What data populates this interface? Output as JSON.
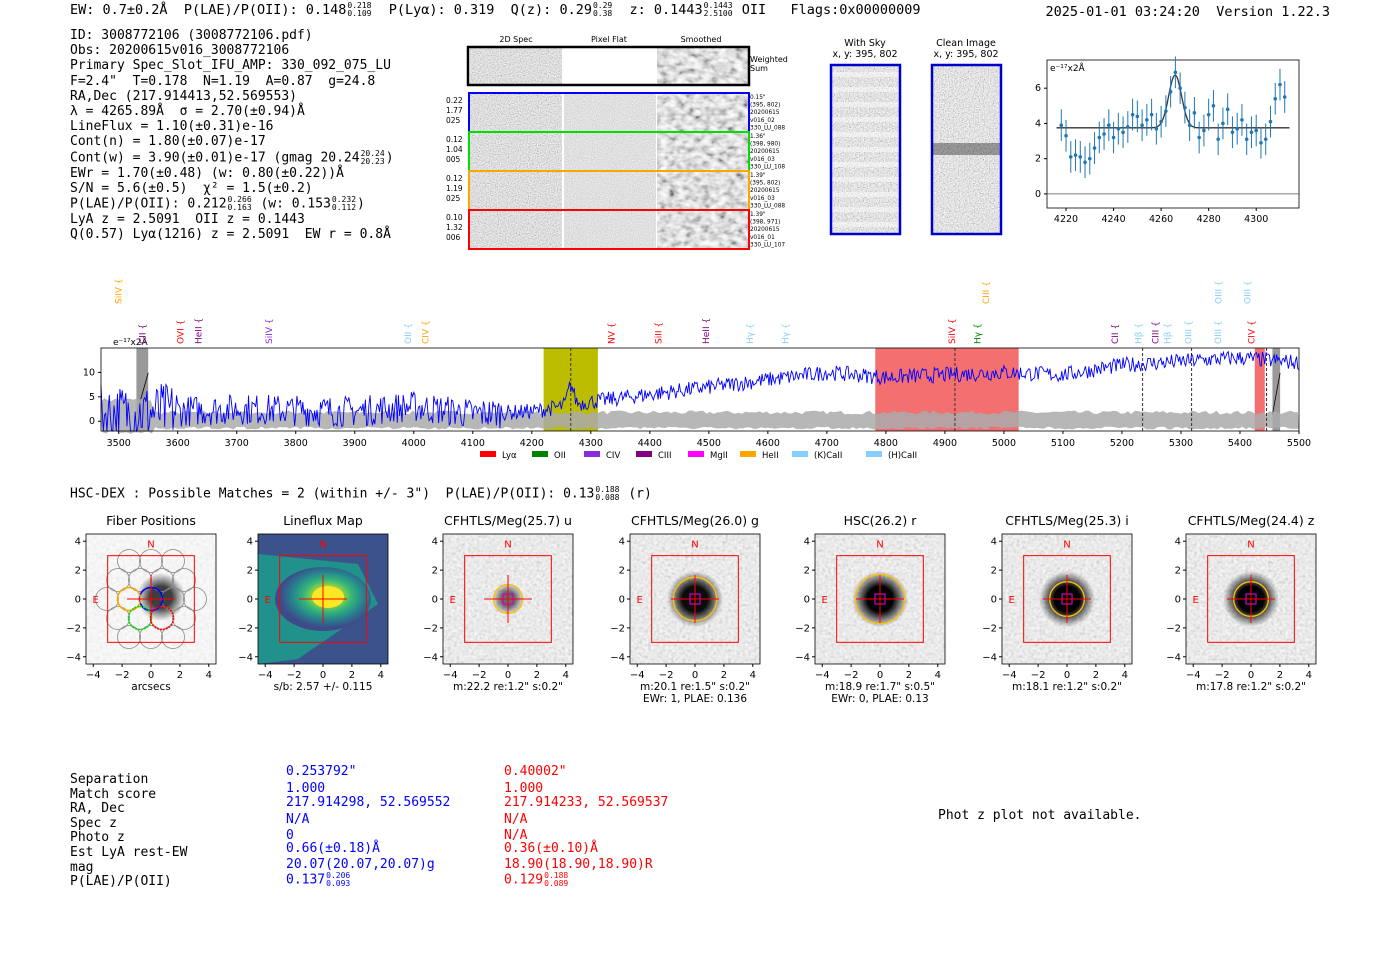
{
  "header": {
    "ew": "EW: 0.7±0.2Å",
    "plae_label": "P(LAE)/P(OII): 0.148",
    "plae_hi": "0.218",
    "plae_lo": "0.109",
    "plya": "P(Lyα): 0.319",
    "qz_label": "Q(z): 0.29",
    "qz_hi": "0.29",
    "qz_lo": "0.38",
    "z_label": "z: 0.1443",
    "z_hi": "0.1443",
    "z_lo": "2.5100",
    "z_line": "OII",
    "flags": "Flags:0x00000009",
    "datetime": "2025-01-01 03:24:20",
    "version": "Version 1.22.3"
  },
  "info": {
    "id": "ID: 3008772106 (3008772106.pdf)",
    "obs": "Obs: 20200615v016_3008772106",
    "primary": "Primary Spec_Slot_IFU_AMP: 330_092_075_LU",
    "params": "F=2.4\"  T=0.178  N=1.19  A=0.87  g=24.8",
    "radec": "RA,Dec (217.914413,52.569553)",
    "lambda": "λ = 4265.89Å  σ = 2.70(±0.94)Å",
    "lineflux": "LineFlux = 1.10(±0.31)e-16",
    "contn": "Cont(n) = 1.80(±0.07)e-17",
    "contw": "Cont(w) = 3.90(±0.01)e-17 (gmag 20.24",
    "contw_hi": "20.24",
    "contw_lo": "20.23",
    "ewr": "EWr = 1.70(±0.48) (w: 0.80(±0.22))Å",
    "sn": "S/N = 5.6(±0.5)  χ² = 1.5(±0.2)",
    "plae2": "P(LAE)/P(OII): 0.212",
    "plae2_hi": "0.266",
    "plae2_lo": "0.163",
    "plae2_w": "(w: 0.153",
    "plae2_w_hi": "0.232",
    "plae2_w_lo": "0.112",
    "lyaz": "LyA z = 2.5091  OII z = 0.1443",
    "q": "Q(0.57) Lyα(1216) z = 2.5091  EW r = 0.8Å"
  },
  "cutouts": {
    "headers": [
      "2D Spec",
      "Pixel Flat",
      "Smoothed"
    ],
    "weighted": [
      "Weighted",
      "Sum"
    ],
    "rows": [
      {
        "left": [
          "0.22",
          "1.77",
          "025"
        ],
        "right": [
          "0.15\"",
          "(395, 802)",
          "20200615",
          "v016_02",
          "330_LU_088"
        ],
        "color": "#0000ff"
      },
      {
        "left": [
          "0.12",
          "1.04",
          "005"
        ],
        "right": [
          "1.36\"",
          "(398, 980)",
          "20200615",
          "v016_03",
          "330_LU_108"
        ],
        "color": "#00dd00"
      },
      {
        "left": [
          "0.12",
          "1.19",
          "025"
        ],
        "right": [
          "1.39\"",
          "(395, 802)",
          "20200615",
          "v016_03",
          "330_LU_088"
        ],
        "color": "#ffa500"
      },
      {
        "left": [
          "0.10",
          "1.32",
          "006"
        ],
        "right": [
          "1.39\"",
          "(398, 971)",
          "20200615",
          "v016_01",
          "330_LU_107"
        ],
        "color": "#ff0000"
      }
    ],
    "with_sky": [
      "With Sky",
      "x, y: 395, 802"
    ],
    "clean": [
      "Clean Image",
      "x, y: 395, 802"
    ]
  },
  "hsc_line": {
    "text": "HSC-DEX : Possible Matches = 2 (within +/- 3\")  P(LAE)/P(OII): 0.13",
    "hi": "0.188",
    "lo": "0.088",
    "suffix": "(r)"
  },
  "table": {
    "labels": [
      "Separation",
      "Match score",
      "RA, Dec",
      "Spec z",
      "Photo z",
      "Est LyA rest-EW",
      "mag",
      "P(LAE)/P(OII)"
    ],
    "blue": [
      "0.253792\"",
      "1.000",
      "217.914298, 52.569552",
      "N/A",
      "0",
      "0.66(±0.18)Å",
      "20.07(20.07,20.07)g",
      "0.137"
    ],
    "blue_plae_hi": "0.206",
    "blue_plae_lo": "0.093",
    "red": [
      "0.40002\"",
      "1.000",
      "217.914233, 52.569537",
      "N/A",
      "N/A",
      "0.36(±0.10)Å",
      "18.90(18.90,18.90)R",
      "0.129"
    ],
    "red_plae_hi": "0.188",
    "red_plae_lo": "0.089",
    "blue_color": "#0000ff",
    "red_color": "#ff0000"
  },
  "phot_z": "Phot z plot not available.",
  "chart_data": [
    {
      "type": "scatter",
      "title": "",
      "ylabel": "e⁻¹⁷x2Å",
      "xlim": [
        4212,
        4318
      ],
      "ylim": [
        -0.8,
        7.6
      ],
      "xticks": [
        4220,
        4240,
        4260,
        4280,
        4300
      ],
      "yticks": [
        0,
        2,
        4,
        6
      ],
      "x": [
        4218,
        4220,
        4222,
        4224,
        4226,
        4228,
        4230,
        4232,
        4234,
        4236,
        4238,
        4240,
        4242,
        4244,
        4246,
        4248,
        4250,
        4252,
        4254,
        4256,
        4258,
        4260,
        4262,
        4264,
        4266,
        4268,
        4270,
        4272,
        4274,
        4276,
        4278,
        4280,
        4282,
        4284,
        4286,
        4288,
        4290,
        4292,
        4294,
        4296,
        4298,
        4300,
        4302,
        4304,
        4306,
        4308,
        4310,
        4312
      ],
      "y": [
        3.9,
        3.3,
        2.1,
        2.2,
        2.1,
        1.8,
        2.0,
        2.6,
        3.2,
        3.4,
        3.9,
        3.2,
        3.7,
        3.5,
        3.8,
        4.5,
        4.4,
        3.9,
        4.2,
        4.5,
        3.7,
        4.1,
        4.7,
        5.8,
        6.9,
        6.0,
        4.9,
        3.9,
        4.6,
        3.2,
        3.6,
        4.5,
        5.0,
        3.1,
        4.0,
        4.8,
        3.5,
        3.7,
        4.2,
        3.1,
        3.5,
        3.6,
        2.9,
        3.1,
        4.1,
        5.4,
        6.2,
        5.5
      ],
      "err": 0.9,
      "fit": {
        "baseline": 3.75,
        "amplitude": 3.0,
        "center": 4265.9,
        "sigma": 2.7
      },
      "hline": 0
    },
    {
      "type": "line",
      "title": "",
      "ylabel": "e⁻¹⁷x2Å",
      "xlim": [
        3470,
        5500
      ],
      "ylim": [
        -2,
        15
      ],
      "xticks": [
        3500,
        3600,
        3700,
        3800,
        3900,
        4000,
        4100,
        4200,
        4300,
        4400,
        4500,
        4600,
        4700,
        4800,
        4900,
        5000,
        5100,
        5200,
        5300,
        5400,
        5500
      ],
      "yticks": [
        0,
        5,
        10
      ],
      "series": [
        {
          "name": "spectrum",
          "color": "#0000ff",
          "x_start": 3470,
          "x_end": 5500
        }
      ],
      "continuum_levels": [
        [
          3470,
          1.5
        ],
        [
          3700,
          2.5
        ],
        [
          3900,
          2.0
        ],
        [
          4000,
          3.0
        ],
        [
          4100,
          1.5
        ],
        [
          4200,
          2.0
        ],
        [
          4300,
          4.0
        ],
        [
          4500,
          7.0
        ],
        [
          4700,
          10.0
        ],
        [
          4800,
          9.0
        ],
        [
          5000,
          10.0
        ],
        [
          5100,
          9.5
        ],
        [
          5200,
          11.5
        ],
        [
          5400,
          13.0
        ],
        [
          5500,
          12.0
        ]
      ],
      "highlight_bands": [
        {
          "from": 4220,
          "to": 4312,
          "color": "#bdbd00"
        },
        {
          "from": 4782,
          "to": 5025,
          "color": "#f47070"
        },
        {
          "from": 5425,
          "to": 5442,
          "color": "#f47070"
        }
      ],
      "grey_bands": [
        {
          "from": 3530,
          "to": 3550
        },
        {
          "from": 5455,
          "to": 5468
        }
      ],
      "dashed_lines": [
        4266,
        4917,
        5235,
        5318,
        5445
      ],
      "line_markers": [
        {
          "name": "CII",
          "x": 3545,
          "color": "#800080",
          "level": 1
        },
        {
          "name": "SiIV",
          "x": 3505,
          "color": "#ffa500",
          "level": 3
        },
        {
          "name": "OVI",
          "x": 3610,
          "color": "#ff0000",
          "level": 1
        },
        {
          "name": "HeII",
          "x": 3640,
          "color": "#800080",
          "level": 1
        },
        {
          "name": "SiIV",
          "x": 3760,
          "color": "#8a2be2",
          "level": 1
        },
        {
          "name": "OII",
          "x": 3995,
          "color": "#87cefa",
          "level": 1
        },
        {
          "name": "CIV",
          "x": 4025,
          "color": "#ffa500",
          "level": 1
        },
        {
          "name": "NV",
          "x": 4340,
          "color": "#ff0000",
          "level": 1
        },
        {
          "name": "SiII",
          "x": 4420,
          "color": "#ff0000",
          "level": 1
        },
        {
          "name": "HeII",
          "x": 4500,
          "color": "#800080",
          "level": 1
        },
        {
          "name": "Hγ",
          "x": 4575,
          "color": "#87cefa",
          "level": 1
        },
        {
          "name": "Hγ",
          "x": 4635,
          "color": "#87cefa",
          "level": 1
        },
        {
          "name": "SiIV",
          "x": 4917,
          "color": "#ff0000",
          "level": 1
        },
        {
          "name": "Hγ",
          "x": 4960,
          "color": "#008000",
          "level": 1
        },
        {
          "name": "CIII",
          "x": 4975,
          "color": "#ffa500",
          "level": 3
        },
        {
          "name": "CII",
          "x": 5193,
          "color": "#800080",
          "level": 1
        },
        {
          "name": "Hβ",
          "x": 5233,
          "color": "#87cefa",
          "level": 1
        },
        {
          "name": "CIII",
          "x": 5262,
          "color": "#800080",
          "level": 1
        },
        {
          "name": "Hβ",
          "x": 5282,
          "color": "#87cefa",
          "level": 1
        },
        {
          "name": "OIII",
          "x": 5318,
          "color": "#87cefa",
          "level": 1
        },
        {
          "name": "OIII",
          "x": 5368,
          "color": "#87cefa",
          "level": 1
        },
        {
          "name": "OIII",
          "x": 5369,
          "color": "#87cefa",
          "level": 3
        },
        {
          "name": "OIII",
          "x": 5418,
          "color": "#87cefa",
          "level": 3
        },
        {
          "name": "CIV",
          "x": 5425,
          "color": "#ff0000",
          "level": 1
        }
      ],
      "legend": [
        {
          "name": "Lyα",
          "color": "#ff0000"
        },
        {
          "name": "OII",
          "color": "#008000"
        },
        {
          "name": "CIV",
          "color": "#8a2be2"
        },
        {
          "name": "CIII",
          "color": "#800080"
        },
        {
          "name": "MgII",
          "color": "#ff00ff"
        },
        {
          "name": "HeII",
          "color": "#ffa500"
        },
        {
          "name": "(K)CaII",
          "color": "#87cefa"
        },
        {
          "name": "(H)CaII",
          "color": "#87cefa"
        }
      ],
      "legend_position": "bottom-center"
    },
    {
      "type": "heatmap",
      "panels": [
        {
          "title": "Fiber Positions",
          "xlabel": "arcsecs",
          "kind": "fibers"
        },
        {
          "title": "Lineflux Map",
          "xlabel": "s/b: 2.57 +/- 0.115",
          "kind": "lineflux"
        },
        {
          "title": "CFHTLS/Meg(25.7) u",
          "xlabel": "m:22.2  re:1.2\"  s:0.2\"",
          "xlabel2": "",
          "kind": "cutout",
          "strength": 0.55,
          "circle_r": 1.0
        },
        {
          "title": "CFHTLS/Meg(26.0) g",
          "xlabel": "m:20.1  re:1.5\"  s:0.2\"",
          "xlabel2": "EWr: 1, PLAE: 0.136",
          "kind": "cutout",
          "strength": 0.95,
          "circle_r": 1.5
        },
        {
          "title": "HSC(26.2) r",
          "xlabel": "m:18.9  re:1.7\"  s:0.5\"",
          "xlabel2": "EWr: 0, PLAE: 0.13",
          "kind": "cutout",
          "strength": 1.0,
          "circle_r": 1.7
        },
        {
          "title": "CFHTLS/Meg(25.3) i",
          "xlabel": "m:18.1  re:1.2\"  s:0.2\"",
          "xlabel2": "",
          "kind": "cutout",
          "strength": 1.0,
          "circle_r": 1.2
        },
        {
          "title": "CFHTLS/Meg(24.4) z",
          "xlabel": "m:17.8  re:1.2\"  s:0.2\"",
          "xlabel2": "",
          "kind": "cutout",
          "strength": 1.0,
          "circle_r": 1.2
        }
      ],
      "xlim": [
        -4.5,
        4.5
      ],
      "ylim": [
        -4.5,
        4.5
      ],
      "ticks": [
        -4,
        -2,
        0,
        2,
        4
      ],
      "north_label": "N",
      "east_label": "E",
      "box_half": 3
    }
  ]
}
